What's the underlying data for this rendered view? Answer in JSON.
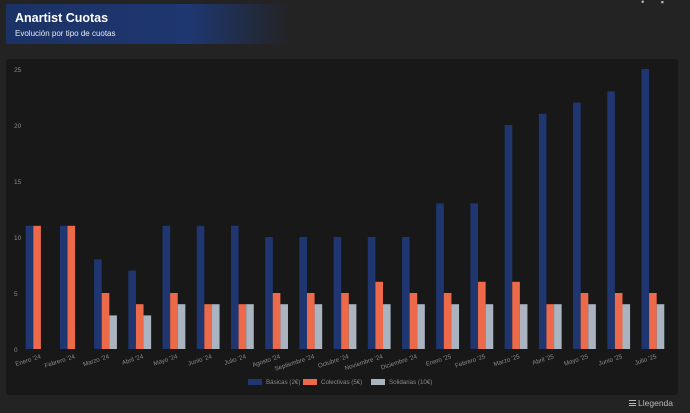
{
  "header": {
    "title": "Anartist Cuotas",
    "subtitle": "Evolución por tipo de cuotas"
  },
  "footer": {
    "legend_toggle_label": "Llegenda",
    "legend_toggle_icon": "hamburger-icon"
  },
  "colors": {
    "background": "#232323",
    "panel": "#181818",
    "header_gradient": "#1f3770",
    "basicas": "#1f3670",
    "colectivas": "#ec6a49",
    "solidarias": "#aab3c0"
  },
  "chart_data": {
    "type": "bar",
    "title": "",
    "xlabel": "",
    "ylabel": "",
    "ylim": [
      0,
      25
    ],
    "yticks": [
      0,
      5,
      10,
      15,
      20,
      25
    ],
    "grid": false,
    "legend_position": "bottom",
    "categories": [
      "Enero '24",
      "Febrero '24",
      "Marzo '24",
      "Abril '24",
      "Mayo '24",
      "Junio '24",
      "Julio '24",
      "Agosto '24",
      "Septiembre '24",
      "Octubre '24",
      "Noviembre '24",
      "Diciembre '24",
      "Enero '25",
      "Febrero '25",
      "Marzo '25",
      "Abril '25",
      "Mayo '25",
      "Junio '25",
      "Julio '25"
    ],
    "series": [
      {
        "name": "Básicas (2€)",
        "color": "#1f3670",
        "values": [
          11,
          11,
          8,
          7,
          11,
          11,
          11,
          10,
          10,
          10,
          10,
          10,
          13,
          13,
          20,
          21,
          22,
          23,
          25
        ]
      },
      {
        "name": "Colectivas (5€)",
        "color": "#ec6a49",
        "values": [
          11,
          11,
          5,
          4,
          5,
          4,
          4,
          5,
          5,
          5,
          6,
          5,
          5,
          6,
          6,
          4,
          5,
          5,
          5
        ]
      },
      {
        "name": "Solidarias (10€)",
        "color": "#aab3c0",
        "values": [
          0,
          0,
          3,
          3,
          4,
          4,
          4,
          4,
          4,
          4,
          4,
          4,
          4,
          4,
          4,
          4,
          4,
          4,
          4
        ]
      }
    ]
  }
}
